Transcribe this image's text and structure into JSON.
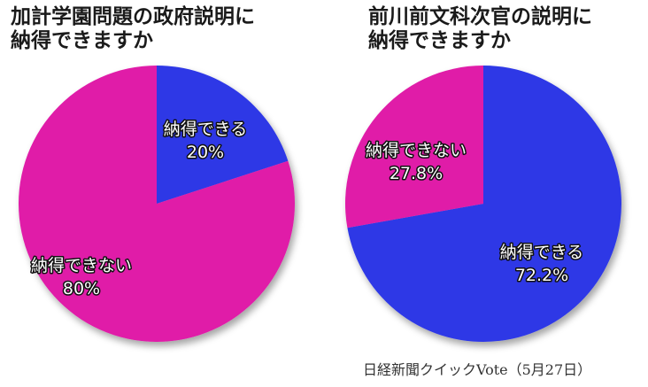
{
  "chart_data": [
    {
      "type": "pie",
      "title_line1": "加計学園問題の政府説明に",
      "title_line2": "納得できますか",
      "slices": [
        {
          "label": "納得できる",
          "value": 20,
          "value_label": "20%",
          "color": "#2f39e6"
        },
        {
          "label": "納得できない",
          "value": 80,
          "value_label": "80%",
          "color": "#e01aa8"
        }
      ]
    },
    {
      "type": "pie",
      "title_line1": "前川前文科次官の説明に",
      "title_line2": "納得できますか",
      "slices": [
        {
          "label": "納得できる",
          "value": 72.2,
          "value_label": "72.2%",
          "color": "#2f39e6"
        },
        {
          "label": "納得できない",
          "value": 27.8,
          "value_label": "27.8%",
          "color": "#e01aa8"
        }
      ]
    }
  ],
  "source": "日経新聞クイックVote（5月27日）"
}
